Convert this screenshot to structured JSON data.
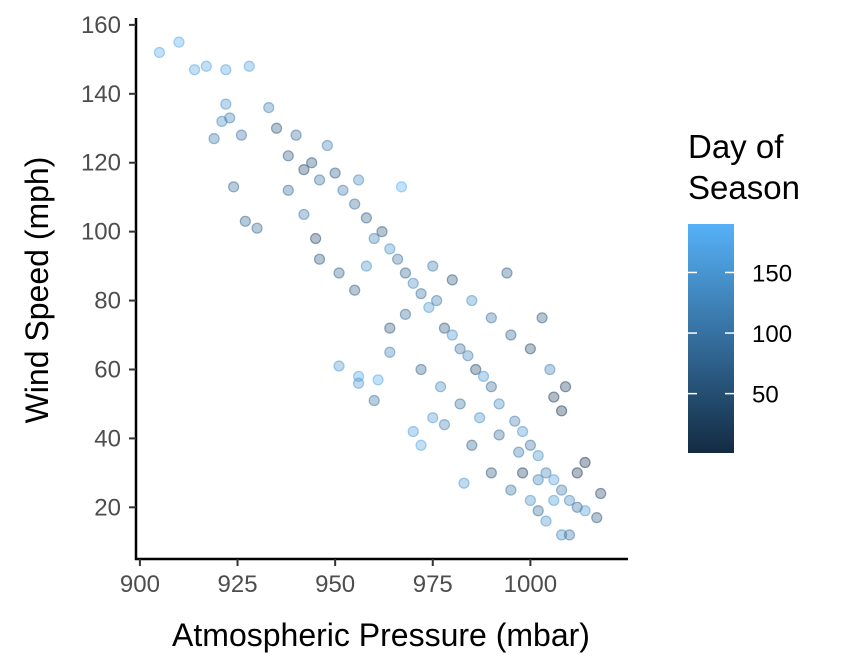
{
  "chart_data": {
    "type": "scatter",
    "title": "",
    "xlabel": "Atmospheric Pressure (mbar)",
    "ylabel": "Wind Speed (mph)",
    "xlim": [
      899,
      1025
    ],
    "ylim": [
      5,
      162
    ],
    "xticks": [
      900,
      925,
      950,
      975,
      1000
    ],
    "yticks": [
      20,
      40,
      60,
      80,
      100,
      120,
      140,
      160
    ],
    "grid": false,
    "color_variable": "Day of Season",
    "legend": {
      "title_lines": [
        "Day of",
        "Season"
      ],
      "ticks": [
        50,
        100,
        150
      ],
      "range": [
        1,
        190
      ],
      "low_color": "#132B43",
      "high_color": "#56B1F7",
      "placement": "right"
    },
    "point_alpha": 0.35,
    "points": [
      {
        "x": 905,
        "y": 152,
        "day": 175
      },
      {
        "x": 910,
        "y": 155,
        "day": 178
      },
      {
        "x": 914,
        "y": 147,
        "day": 172
      },
      {
        "x": 917,
        "y": 148,
        "day": 170
      },
      {
        "x": 922,
        "y": 147,
        "day": 168
      },
      {
        "x": 928,
        "y": 148,
        "day": 165
      },
      {
        "x": 921,
        "y": 132,
        "day": 130
      },
      {
        "x": 923,
        "y": 133,
        "day": 120
      },
      {
        "x": 922,
        "y": 137,
        "day": 140
      },
      {
        "x": 919,
        "y": 127,
        "day": 110
      },
      {
        "x": 926,
        "y": 128,
        "day": 100
      },
      {
        "x": 924,
        "y": 113,
        "day": 90
      },
      {
        "x": 927,
        "y": 103,
        "day": 80
      },
      {
        "x": 930,
        "y": 101,
        "day": 85
      },
      {
        "x": 933,
        "y": 136,
        "day": 120
      },
      {
        "x": 935,
        "y": 130,
        "day": 60
      },
      {
        "x": 938,
        "y": 122,
        "day": 70
      },
      {
        "x": 940,
        "y": 128,
        "day": 95
      },
      {
        "x": 942,
        "y": 118,
        "day": 40
      },
      {
        "x": 944,
        "y": 120,
        "day": 55
      },
      {
        "x": 946,
        "y": 115,
        "day": 100
      },
      {
        "x": 948,
        "y": 125,
        "day": 120
      },
      {
        "x": 950,
        "y": 117,
        "day": 65
      },
      {
        "x": 952,
        "y": 112,
        "day": 110
      },
      {
        "x": 955,
        "y": 108,
        "day": 90
      },
      {
        "x": 956,
        "y": 115,
        "day": 130
      },
      {
        "x": 958,
        "y": 104,
        "day": 75
      },
      {
        "x": 960,
        "y": 98,
        "day": 120
      },
      {
        "x": 962,
        "y": 100,
        "day": 60
      },
      {
        "x": 964,
        "y": 95,
        "day": 140
      },
      {
        "x": 966,
        "y": 92,
        "day": 100
      },
      {
        "x": 967,
        "y": 113,
        "day": 185
      },
      {
        "x": 968,
        "y": 88,
        "day": 80
      },
      {
        "x": 970,
        "y": 85,
        "day": 130
      },
      {
        "x": 972,
        "y": 82,
        "day": 95
      },
      {
        "x": 974,
        "y": 78,
        "day": 150
      },
      {
        "x": 976,
        "y": 80,
        "day": 110
      },
      {
        "x": 978,
        "y": 72,
        "day": 60
      },
      {
        "x": 980,
        "y": 70,
        "day": 140
      },
      {
        "x": 982,
        "y": 66,
        "day": 100
      },
      {
        "x": 984,
        "y": 64,
        "day": 120
      },
      {
        "x": 986,
        "y": 60,
        "day": 45
      },
      {
        "x": 988,
        "y": 58,
        "day": 150
      },
      {
        "x": 990,
        "y": 55,
        "day": 90
      },
      {
        "x": 992,
        "y": 50,
        "day": 130
      },
      {
        "x": 994,
        "y": 88,
        "day": 70
      },
      {
        "x": 996,
        "y": 45,
        "day": 115
      },
      {
        "x": 998,
        "y": 42,
        "day": 145
      },
      {
        "x": 1000,
        "y": 38,
        "day": 100
      },
      {
        "x": 1002,
        "y": 35,
        "day": 140
      },
      {
        "x": 1003,
        "y": 75,
        "day": 60
      },
      {
        "x": 1004,
        "y": 30,
        "day": 120
      },
      {
        "x": 1006,
        "y": 28,
        "day": 160
      },
      {
        "x": 1008,
        "y": 25,
        "day": 110
      },
      {
        "x": 1010,
        "y": 22,
        "day": 130
      },
      {
        "x": 1012,
        "y": 20,
        "day": 90
      },
      {
        "x": 1014,
        "y": 19,
        "day": 150
      },
      {
        "x": 1017,
        "y": 17,
        "day": 60
      },
      {
        "x": 1018,
        "y": 24,
        "day": 40
      },
      {
        "x": 1008,
        "y": 12,
        "day": 130
      },
      {
        "x": 1010,
        "y": 12,
        "day": 100
      },
      {
        "x": 1004,
        "y": 16,
        "day": 140
      },
      {
        "x": 1002,
        "y": 19,
        "day": 90
      },
      {
        "x": 1012,
        "y": 30,
        "day": 20
      },
      {
        "x": 1014,
        "y": 33,
        "day": 10
      },
      {
        "x": 1008,
        "y": 48,
        "day": 15
      },
      {
        "x": 1006,
        "y": 52,
        "day": 25
      },
      {
        "x": 983,
        "y": 27,
        "day": 150
      },
      {
        "x": 951,
        "y": 61,
        "day": 150
      },
      {
        "x": 956,
        "y": 58,
        "day": 170
      },
      {
        "x": 961,
        "y": 57,
        "day": 175
      },
      {
        "x": 956,
        "y": 56,
        "day": 150
      },
      {
        "x": 960,
        "y": 51,
        "day": 100
      },
      {
        "x": 970,
        "y": 42,
        "day": 160
      },
      {
        "x": 972,
        "y": 38,
        "day": 170
      },
      {
        "x": 975,
        "y": 46,
        "day": 150
      },
      {
        "x": 978,
        "y": 44,
        "day": 120
      },
      {
        "x": 985,
        "y": 38,
        "day": 80
      },
      {
        "x": 990,
        "y": 30,
        "day": 60
      },
      {
        "x": 995,
        "y": 25,
        "day": 100
      },
      {
        "x": 1000,
        "y": 22,
        "day": 140
      },
      {
        "x": 998,
        "y": 30,
        "day": 30
      },
      {
        "x": 964,
        "y": 72,
        "day": 60
      },
      {
        "x": 968,
        "y": 76,
        "day": 90
      },
      {
        "x": 955,
        "y": 83,
        "day": 70
      },
      {
        "x": 951,
        "y": 88,
        "day": 80
      },
      {
        "x": 958,
        "y": 90,
        "day": 140
      },
      {
        "x": 945,
        "y": 98,
        "day": 40
      },
      {
        "x": 942,
        "y": 105,
        "day": 110
      },
      {
        "x": 938,
        "y": 112,
        "day": 90
      },
      {
        "x": 946,
        "y": 92,
        "day": 60
      },
      {
        "x": 964,
        "y": 65,
        "day": 120
      },
      {
        "x": 972,
        "y": 60,
        "day": 80
      },
      {
        "x": 977,
        "y": 55,
        "day": 130
      },
      {
        "x": 982,
        "y": 50,
        "day": 100
      },
      {
        "x": 987,
        "y": 46,
        "day": 140
      },
      {
        "x": 992,
        "y": 41,
        "day": 90
      },
      {
        "x": 997,
        "y": 36,
        "day": 110
      },
      {
        "x": 1002,
        "y": 28,
        "day": 120
      },
      {
        "x": 1006,
        "y": 22,
        "day": 150
      },
      {
        "x": 975,
        "y": 90,
        "day": 110
      },
      {
        "x": 980,
        "y": 86,
        "day": 60
      },
      {
        "x": 985,
        "y": 80,
        "day": 140
      },
      {
        "x": 990,
        "y": 75,
        "day": 100
      },
      {
        "x": 995,
        "y": 70,
        "day": 80
      },
      {
        "x": 1000,
        "y": 66,
        "day": 50
      },
      {
        "x": 1005,
        "y": 60,
        "day": 120
      },
      {
        "x": 1009,
        "y": 55,
        "day": 30
      }
    ]
  }
}
